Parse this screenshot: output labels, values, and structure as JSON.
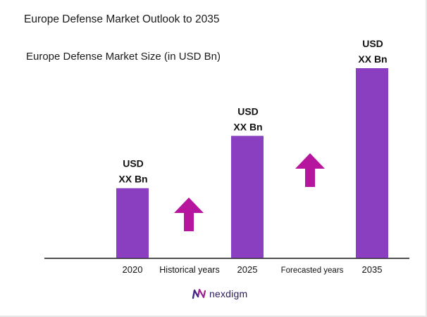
{
  "title": "Europe Defense Market Outlook to 2035",
  "logo_text": "nexdigm",
  "colors": {
    "bar": "#8a3fc0",
    "arrow": "#b6169e",
    "axis": "#111111"
  },
  "chart_data": {
    "type": "bar",
    "title": "Europe Defense Market Size (in USD Bn)",
    "categories": [
      "2020",
      "2025",
      "2035"
    ],
    "values": [
      1.0,
      1.75,
      2.72
    ],
    "value_note": "relative bar heights only; values shown as placeholders",
    "data_labels": [
      [
        "USD",
        "XX Bn"
      ],
      [
        "USD",
        "XX Bn"
      ],
      [
        "USD",
        "XX Bn"
      ]
    ],
    "period_labels": [
      "Historical years",
      "Forecasted years"
    ],
    "ylim": [
      0,
      2.72
    ],
    "grid": false,
    "legend": "none"
  }
}
